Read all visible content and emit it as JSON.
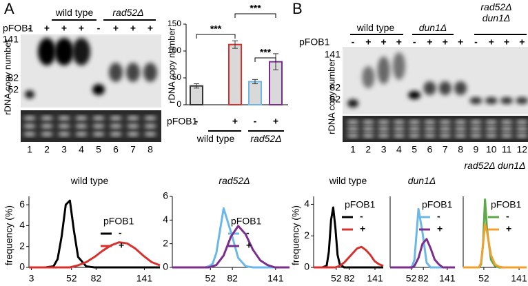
{
  "panel_labels": [
    "A",
    "B"
  ],
  "gels": [
    {
      "groups": [
        "wild type",
        "rad52Δ"
      ],
      "pfob1": "pFOB1",
      "signs": [
        "-",
        "+",
        "+",
        "+",
        "-",
        "+",
        "+",
        "+"
      ],
      "lanes": [
        1,
        2,
        3,
        4,
        5,
        6,
        7,
        8
      ],
      "size_labels": [
        141,
        82,
        52
      ],
      "ylabel": "rDNA copy number"
    },
    {
      "groups": [
        "wild type",
        "dun1Δ",
        "rad52Δ dun1Δ"
      ],
      "pfob1": "pFOB1",
      "signs": [
        "-",
        "+",
        "+",
        "+",
        "-",
        "+",
        "+",
        "+",
        "-",
        "+",
        "+",
        "+"
      ],
      "lanes": [
        1,
        2,
        3,
        4,
        5,
        6,
        7,
        8,
        9,
        10,
        11,
        12
      ],
      "size_labels": [
        141,
        82,
        52
      ],
      "ylabel": "rDNA copy number"
    }
  ],
  "chart_data": [
    {
      "type": "bar",
      "ylabel": "rDNA copy number",
      "xlabel": "pFOB1",
      "categories": [
        "-",
        "+",
        "-",
        "+"
      ],
      "groups": [
        "wild type",
        "rad52Δ"
      ],
      "values": [
        35,
        112,
        43,
        80
      ],
      "errors": [
        4,
        7,
        4,
        15
      ],
      "colors": [
        "#333333",
        "#d7312d",
        "#6bb8e8",
        "#7b2d8e"
      ],
      "fill": "#d9d9d9",
      "ylim": [
        0,
        150
      ],
      "yticks": [
        0,
        50,
        100,
        150
      ],
      "annotations": [
        "***",
        "***",
        "***"
      ]
    },
    {
      "type": "line",
      "title": "wild type",
      "ylabel": "frequency (%)",
      "legend_title": "pFOB1",
      "x": [
        0,
        10,
        20,
        30,
        35,
        40,
        45,
        50,
        55,
        60,
        70,
        80,
        90,
        100,
        110,
        120,
        130,
        140,
        150,
        160
      ],
      "series": [
        {
          "name": "-",
          "color": "#000000",
          "values": [
            0,
            0,
            0,
            0.1,
            0.8,
            3,
            6,
            6.4,
            3.5,
            1,
            0.1,
            0,
            0,
            0,
            0,
            0,
            0,
            0,
            0,
            0
          ]
        },
        {
          "name": "+",
          "color": "#d7312d",
          "values": [
            0,
            0,
            0,
            0,
            0,
            0,
            0,
            0,
            0.1,
            0.2,
            0.5,
            1,
            1.6,
            2.1,
            2.4,
            2.3,
            1.8,
            1.1,
            0.5,
            0.2
          ]
        }
      ],
      "xlim": [
        0,
        160
      ],
      "ylim": [
        0,
        6.8
      ],
      "xticks": [
        3,
        52,
        82,
        141
      ],
      "yticks": [
        0,
        2,
        4,
        6
      ]
    },
    {
      "type": "line",
      "title": "rad52Δ",
      "legend_title": "pFOB1",
      "x": [
        0,
        10,
        20,
        30,
        35,
        40,
        45,
        50,
        55,
        60,
        70,
        80,
        90,
        100,
        110,
        120,
        130,
        140,
        150,
        160
      ],
      "series": [
        {
          "name": "-",
          "color": "#6bb8e8",
          "values": [
            0,
            0,
            0,
            0,
            0,
            0,
            0,
            0.1,
            0.3,
            1.2,
            5,
            3,
            0.8,
            0.1,
            0,
            0,
            0,
            0,
            0,
            0
          ]
        },
        {
          "name": "+",
          "color": "#7b2d8e",
          "values": [
            0,
            0,
            0,
            0,
            0,
            0,
            0,
            0,
            0.1,
            0.2,
            1,
            2.6,
            3.5,
            2.8,
            1.5,
            0.6,
            0.2,
            0,
            0,
            0
          ]
        }
      ],
      "xlim": [
        0,
        160
      ],
      "ylim": [
        0,
        6
      ],
      "xticks": [
        52,
        82,
        141
      ],
      "yticks": [
        0,
        2,
        4,
        6
      ]
    },
    {
      "type": "line",
      "title": "wild type",
      "ylabel": "frequency (%)",
      "legend_title": "pFOB1",
      "x": [
        0,
        10,
        20,
        30,
        35,
        40,
        45,
        50,
        55,
        60,
        70,
        80,
        90,
        100,
        110,
        120,
        130,
        140,
        150,
        160
      ],
      "series": [
        {
          "name": "-",
          "color": "#000000",
          "values": [
            0,
            0,
            0,
            0.1,
            1,
            3,
            3.8,
            2.5,
            0.8,
            0.2,
            0,
            0,
            0,
            0,
            0,
            0,
            0,
            0,
            0,
            0
          ]
        },
        {
          "name": "+",
          "color": "#d7312d",
          "values": [
            0,
            0,
            0,
            0,
            0,
            0,
            0,
            0,
            0.05,
            0.1,
            0.3,
            0.6,
            0.9,
            1.2,
            1.3,
            1.1,
            0.8,
            0.4,
            0.2,
            0.1
          ]
        }
      ],
      "xlim": [
        0,
        160
      ],
      "ylim": [
        0,
        4.5
      ],
      "xticks": [
        52,
        82,
        141
      ],
      "yticks": [
        0,
        2,
        4
      ]
    },
    {
      "type": "line",
      "title": "dun1Δ",
      "legend_title": "pFOB1",
      "x": [
        0,
        10,
        20,
        30,
        35,
        40,
        45,
        50,
        55,
        60,
        70,
        80,
        90,
        100,
        110,
        120,
        130,
        140,
        150,
        160
      ],
      "series": [
        {
          "name": "-",
          "color": "#6bb8e8",
          "values": [
            0,
            0,
            0,
            0,
            0,
            0,
            0,
            0,
            0.1,
            0.5,
            3.7,
            2.2,
            0.3,
            0,
            0,
            0,
            0,
            0,
            0,
            0
          ]
        },
        {
          "name": "+",
          "color": "#7b2d8e",
          "values": [
            0,
            0,
            0,
            0,
            0,
            0,
            0,
            0,
            0,
            0.1,
            0.6,
            1.5,
            1.8,
            1.2,
            0.5,
            0.2,
            0,
            0,
            0,
            0
          ]
        }
      ],
      "xlim": [
        0,
        160
      ],
      "ylim": [
        0,
        4.5
      ],
      "xticks": [
        52,
        82,
        141
      ]
    },
    {
      "type": "line",
      "title": "rad52Δ dun1Δ",
      "legend_title": "pFOB1",
      "x": [
        0,
        10,
        20,
        30,
        35,
        40,
        45,
        50,
        55,
        60,
        70,
        80,
        90,
        100,
        110,
        120,
        130,
        140,
        150,
        160
      ],
      "series": [
        {
          "name": "-",
          "color": "#5aaa46",
          "values": [
            0,
            0,
            0,
            0,
            0,
            0,
            0.2,
            1.5,
            4.4,
            2.5,
            0.5,
            0.1,
            0,
            0,
            0,
            0,
            0,
            0,
            0,
            0
          ]
        },
        {
          "name": "+",
          "color": "#f0a030",
          "values": [
            0,
            0,
            0,
            0,
            0,
            0,
            0.3,
            1.5,
            2.8,
            2.3,
            0.8,
            0.2,
            0.05,
            0,
            0,
            0,
            0,
            0,
            0,
            0
          ]
        }
      ],
      "xlim": [
        0,
        160
      ],
      "ylim": [
        0,
        4.6
      ],
      "xticks": [
        52,
        141
      ]
    }
  ]
}
